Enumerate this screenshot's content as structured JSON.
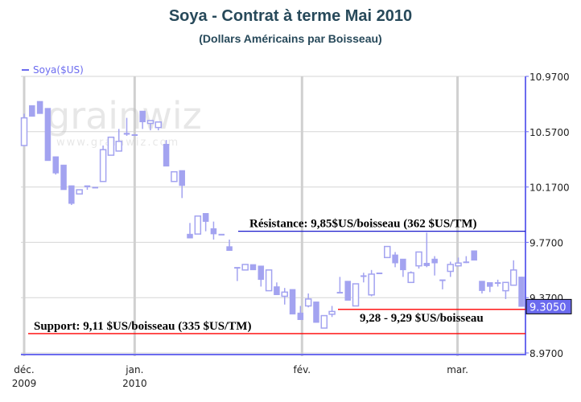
{
  "chart_data": {
    "type": "candlestick",
    "title": "Soya - Contrat à terme Mai 2010",
    "subtitle": "(Dollars Américains par Boisseau)",
    "legend": {
      "label": "Soya($US)",
      "placement": "top-left"
    },
    "watermark": {
      "logo": "grainwiz",
      "url_text": "www.grainwiz.com"
    },
    "ylim": [
      8.97,
      10.97
    ],
    "y_ticks": [
      "10.9700",
      "10.5700",
      "10.1700",
      "9.7700",
      "9.3700",
      "8.9700"
    ],
    "y_tick_values": [
      10.97,
      10.57,
      10.17,
      9.77,
      9.37,
      8.97
    ],
    "x_ticks": [
      {
        "label1": "déc.",
        "label2": "2009",
        "at": 0
      },
      {
        "label1": "jan.",
        "label2": "2010",
        "at": 14
      },
      {
        "label1": "fév.",
        "label2": "",
        "at": 35.2
      },
      {
        "label1": "mar.",
        "label2": "",
        "at": 54.9
      }
    ],
    "last_price": "9.3050",
    "grid": true,
    "colors": {
      "candle": "#a3a3f0",
      "axis": "#6b6bef",
      "grid": "#d6d6d6",
      "resistance": "#1a1acc",
      "support": "#ff0000",
      "title": "#27495a"
    },
    "candles": [
      [
        10.47,
        10.7,
        10.47,
        10.67
      ],
      [
        10.76,
        10.76,
        10.68,
        10.68
      ],
      [
        10.79,
        10.79,
        10.7,
        10.7
      ],
      [
        10.74,
        10.74,
        10.36,
        10.36
      ],
      [
        10.39,
        10.39,
        10.26,
        10.27
      ],
      [
        10.33,
        10.33,
        10.15,
        10.15
      ],
      [
        10.18,
        10.18,
        10.04,
        10.05
      ],
      [
        10.12,
        10.15,
        10.12,
        10.15
      ],
      [
        10.18,
        10.18,
        10.15,
        10.17
      ],
      [
        10.17,
        10.17,
        10.17,
        10.17
      ],
      [
        10.21,
        10.47,
        10.21,
        10.44
      ],
      [
        10.4,
        10.53,
        10.4,
        10.53
      ],
      [
        10.43,
        10.59,
        10.43,
        10.5
      ],
      [
        10.56,
        10.67,
        10.54,
        10.55
      ],
      [
        10.55,
        10.55,
        10.55,
        10.55
      ],
      [
        10.72,
        10.72,
        10.59,
        10.64
      ],
      [
        10.63,
        10.65,
        10.58,
        10.65
      ],
      [
        10.6,
        10.64,
        10.58,
        10.64
      ],
      [
        10.48,
        10.51,
        10.32,
        10.32
      ],
      [
        10.21,
        10.28,
        10.21,
        10.28
      ],
      [
        10.29,
        10.29,
        10.09,
        10.18
      ],
      [
        9.83,
        9.91,
        9.8,
        9.8
      ],
      [
        9.83,
        9.96,
        9.83,
        9.96
      ],
      [
        9.98,
        9.98,
        9.85,
        9.92
      ],
      [
        9.87,
        9.92,
        9.79,
        9.83
      ],
      [
        9.83,
        9.83,
        9.83,
        9.83
      ],
      [
        9.74,
        9.79,
        9.71,
        9.71
      ],
      [
        9.59,
        9.59,
        9.49,
        9.59
      ],
      [
        9.57,
        9.61,
        9.57,
        9.61
      ],
      [
        9.61,
        9.61,
        9.57,
        9.57
      ],
      [
        9.6,
        9.6,
        9.45,
        9.5
      ],
      [
        9.42,
        9.57,
        9.42,
        9.57
      ],
      [
        9.45,
        9.48,
        9.39,
        9.39
      ],
      [
        9.38,
        9.44,
        9.32,
        9.41
      ],
      [
        9.43,
        9.43,
        9.25,
        9.25
      ],
      [
        9.26,
        9.31,
        9.21,
        9.21
      ],
      [
        9.31,
        9.4,
        9.3,
        9.36
      ],
      [
        9.34,
        9.34,
        9.19,
        9.19
      ],
      [
        9.15,
        9.24,
        9.15,
        9.24
      ],
      [
        9.25,
        9.31,
        9.23,
        9.27
      ],
      [
        9.41,
        9.52,
        9.41,
        9.41
      ],
      [
        9.49,
        9.49,
        9.35,
        9.35
      ],
      [
        9.31,
        9.47,
        9.31,
        9.47
      ],
      [
        9.53,
        9.55,
        9.48,
        9.53
      ],
      [
        9.39,
        9.57,
        9.38,
        9.54
      ],
      [
        9.55,
        9.55,
        9.55,
        9.55
      ],
      [
        9.66,
        9.74,
        9.66,
        9.74
      ],
      [
        9.68,
        9.7,
        9.59,
        9.62
      ],
      [
        9.65,
        9.65,
        9.52,
        9.57
      ],
      [
        9.48,
        9.56,
        9.48,
        9.55
      ],
      [
        9.6,
        9.7,
        9.58,
        9.7
      ],
      [
        9.62,
        9.84,
        9.59,
        9.6
      ],
      [
        9.65,
        9.67,
        9.53,
        9.62
      ],
      [
        9.5,
        9.5,
        9.43,
        9.5
      ],
      [
        9.56,
        9.63,
        9.52,
        9.61
      ],
      [
        9.6,
        9.66,
        9.6,
        9.62
      ],
      [
        9.63,
        9.67,
        9.62,
        9.63
      ],
      [
        9.71,
        9.71,
        9.64,
        9.64
      ],
      [
        9.49,
        9.49,
        9.4,
        9.42
      ],
      [
        9.48,
        9.48,
        9.41,
        9.45
      ],
      [
        9.48,
        9.5,
        9.45,
        9.48
      ],
      [
        9.42,
        9.48,
        9.36,
        9.48
      ],
      [
        9.46,
        9.64,
        9.46,
        9.57
      ],
      [
        9.52,
        9.52,
        9.305,
        9.305
      ]
    ],
    "annotations": {
      "resistance": {
        "text": "Résistance: 9,85$US/boisseau (362 $US/TM)",
        "value": 9.85
      },
      "support": {
        "text": "Support: 9,11 $US/boisseau (335 $US/TM)",
        "value": 9.11
      },
      "range": {
        "text": "9,28 - 9,29 $US/boisseau",
        "value": 9.285
      }
    }
  }
}
